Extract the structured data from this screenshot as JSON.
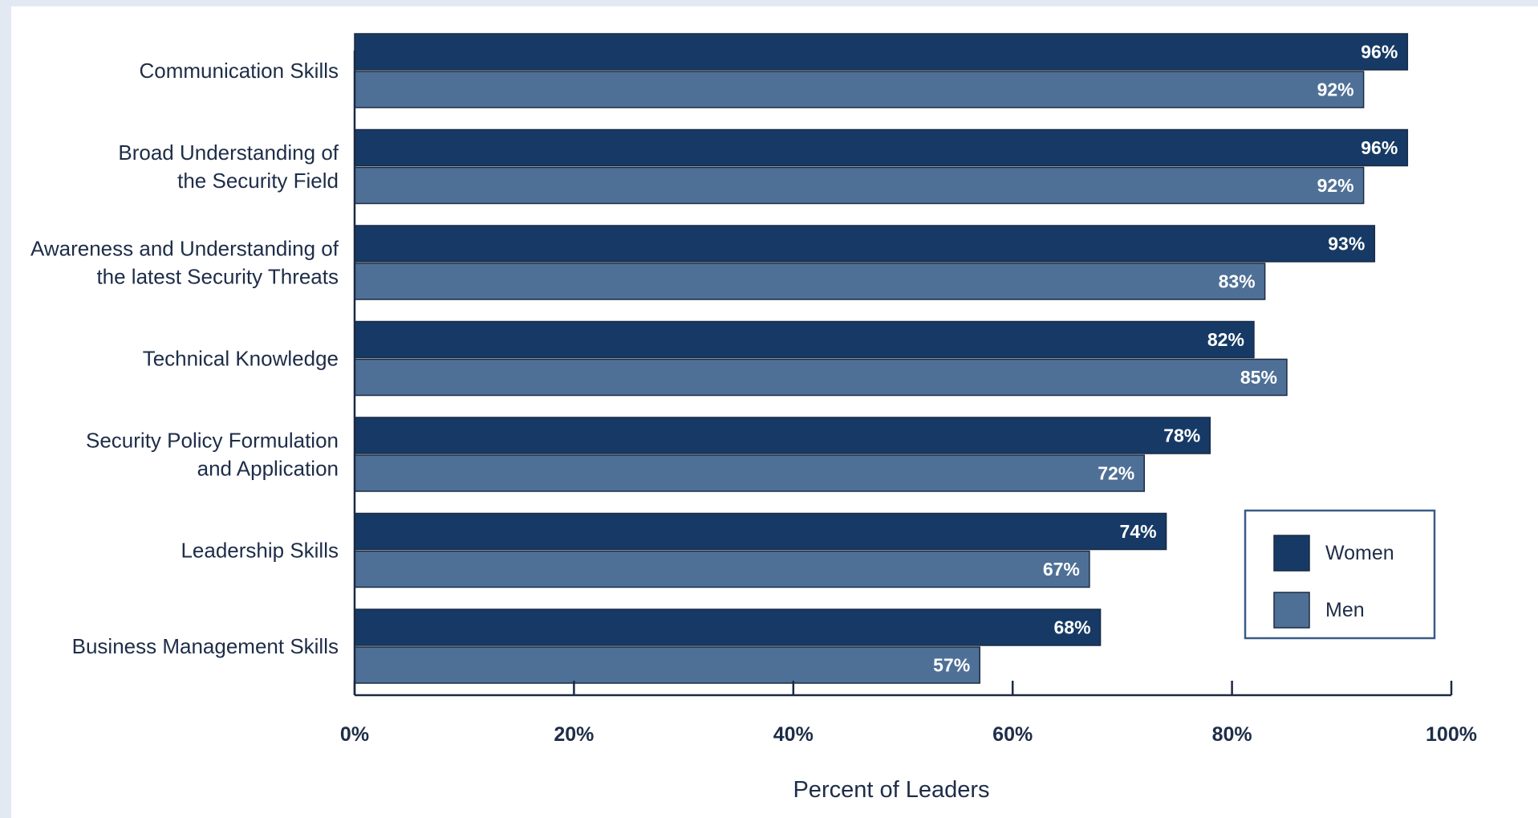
{
  "chart_data": {
    "type": "bar",
    "orientation": "horizontal",
    "categories": [
      [
        "Communication Skills"
      ],
      [
        "Broad Understanding of",
        "the Security Field"
      ],
      [
        "Awareness and Understanding of",
        "the latest Security Threats"
      ],
      [
        "Technical Knowledge"
      ],
      [
        "Security Policy Formulation",
        "and Application"
      ],
      [
        "Leadership Skills"
      ],
      [
        "Business Management Skills"
      ]
    ],
    "series": [
      {
        "name": "Women",
        "values": [
          96,
          96,
          93,
          82,
          78,
          74,
          68
        ],
        "labels": [
          "96%",
          "96%",
          "93%",
          "82%",
          "78%",
          "74%",
          "68%"
        ],
        "color": "#163a65"
      },
      {
        "name": "Men",
        "values": [
          92,
          92,
          83,
          85,
          72,
          67,
          57
        ],
        "labels": [
          "92%",
          "92%",
          "83%",
          "85%",
          "72%",
          "67%",
          "57%"
        ],
        "color": "#4f7096"
      }
    ],
    "xlabel": "Percent of Leaders",
    "ylabel": "",
    "xlim": [
      0,
      100
    ],
    "xticks": [
      0,
      20,
      40,
      60,
      80,
      100
    ],
    "xtick_labels": [
      "0%",
      "20%",
      "40%",
      "60%",
      "80%",
      "100%"
    ],
    "grid": false,
    "legend_position": "bottom-right"
  }
}
